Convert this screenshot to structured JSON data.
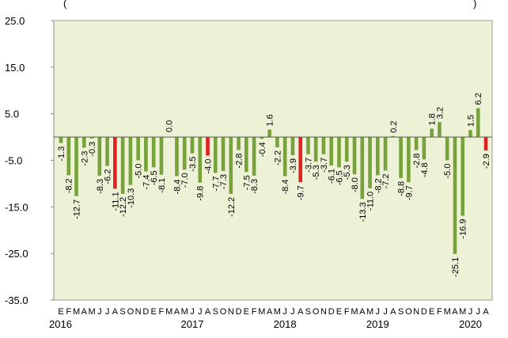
{
  "header_fragment": "(",
  "header_fragment_right": ")",
  "chart_data": {
    "type": "bar",
    "ylim": [
      -35,
      25
    ],
    "yticks": [
      25.0,
      15.0,
      5.0,
      -5.0,
      -15.0,
      -25.0,
      -35.0
    ],
    "ytick_labels": [
      "25.0",
      "15.0",
      "5.0",
      "-5.0",
      "-15.0",
      "-25.0",
      "-35.0"
    ],
    "grid": false,
    "plot_background": "#edf1d6",
    "colors": {
      "default": "#77a13b",
      "highlight": "#e32020"
    },
    "categories": [
      "E",
      "F",
      "M",
      "A",
      "M",
      "J",
      "J",
      "A",
      "S",
      "O",
      "N",
      "D",
      "E",
      "F",
      "M",
      "A",
      "M",
      "J",
      "J",
      "A",
      "S",
      "O",
      "N",
      "D",
      "E",
      "F",
      "M",
      "A",
      "M",
      "J",
      "J",
      "A",
      "S",
      "O",
      "N",
      "D",
      "E",
      "F",
      "M",
      "A",
      "M",
      "J",
      "J",
      "A",
      "S",
      "O",
      "N",
      "D",
      "E",
      "F",
      "M",
      "A",
      "M",
      "J",
      "J",
      "A"
    ],
    "years": [
      {
        "label": "2016",
        "start_index": 0
      },
      {
        "label": "2017",
        "start_index": 12
      },
      {
        "label": "2018",
        "start_index": 24
      },
      {
        "label": "2019",
        "start_index": 36
      },
      {
        "label": "2020",
        "start_index": 48
      }
    ],
    "values": [
      -1.3,
      -8.2,
      -12.7,
      -2.3,
      -0.3,
      -8.3,
      -6.2,
      -11.1,
      -12.2,
      -10.3,
      -5.0,
      -7.4,
      -6.5,
      -8.1,
      0.0,
      -8.4,
      -7.0,
      -3.5,
      -9.8,
      -4.0,
      -7.7,
      -7.3,
      -12.2,
      -2.8,
      -7.5,
      -8.3,
      -0.4,
      1.6,
      -2.2,
      -8.4,
      -3.9,
      -9.7,
      -3.7,
      -5.3,
      -3.7,
      -6.1,
      -6.5,
      -5.3,
      -8.0,
      -13.3,
      -11.0,
      -8.2,
      -7.2,
      0.2,
      -8.8,
      -9.7,
      -2.8,
      -4.8,
      1.8,
      3.2,
      -5.0,
      -25.1,
      -16.9,
      1.5,
      6.2,
      -2.9
    ],
    "highlighted_indices": [
      7,
      19,
      31,
      55
    ]
  }
}
